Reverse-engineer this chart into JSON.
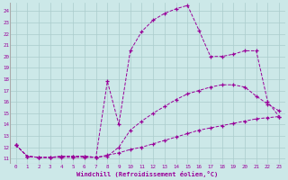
{
  "xlabel": "Windchill (Refroidissement éolien,°C)",
  "bg_color": "#cce8e8",
  "grid_color": "#aacccc",
  "line_color": "#990099",
  "xlim_min": -0.5,
  "xlim_max": 23.5,
  "ylim_min": 10.5,
  "ylim_max": 24.7,
  "xticks": [
    0,
    1,
    2,
    3,
    4,
    5,
    6,
    7,
    8,
    9,
    10,
    11,
    12,
    13,
    14,
    15,
    16,
    17,
    18,
    19,
    20,
    21,
    22,
    23
  ],
  "yticks": [
    11,
    12,
    13,
    14,
    15,
    16,
    17,
    18,
    19,
    20,
    21,
    22,
    23,
    24
  ],
  "lines": [
    {
      "x": [
        0,
        1,
        2,
        3,
        4,
        5,
        6,
        7,
        8,
        9,
        10,
        11,
        12,
        13,
        14,
        15,
        16,
        17,
        18,
        19,
        20,
        21,
        22,
        23
      ],
      "y": [
        12.2,
        11.2,
        11.1,
        11.1,
        11.1,
        11.1,
        11.1,
        11.1,
        11.3,
        11.5,
        11.8,
        12.0,
        12.3,
        12.6,
        12.9,
        13.2,
        13.5,
        13.7,
        13.9,
        14.1,
        14.3,
        14.5,
        14.6,
        14.7
      ]
    },
    {
      "x": [
        0,
        1,
        2,
        3,
        4,
        5,
        6,
        7,
        8,
        9,
        10,
        11,
        12,
        13,
        14,
        15,
        16,
        17,
        18,
        19,
        20,
        21,
        22,
        23
      ],
      "y": [
        12.2,
        11.2,
        11.1,
        11.1,
        11.2,
        11.2,
        11.2,
        11.1,
        11.2,
        12.0,
        13.5,
        14.3,
        15.0,
        15.6,
        16.2,
        16.7,
        17.0,
        17.3,
        17.5,
        17.5,
        17.3,
        16.5,
        15.8,
        15.2
      ]
    },
    {
      "x": [
        0,
        1,
        2,
        3,
        4,
        5,
        6,
        7,
        8,
        9,
        10,
        11,
        12,
        13,
        14,
        15,
        16,
        17,
        18,
        19,
        20,
        21,
        22,
        23
      ],
      "y": [
        12.2,
        11.2,
        11.1,
        11.1,
        11.2,
        11.2,
        11.2,
        11.1,
        17.8,
        14.0,
        20.5,
        22.2,
        23.2,
        23.8,
        24.2,
        24.5,
        22.3,
        20.0,
        20.0,
        20.2,
        20.5,
        20.5,
        16.0,
        14.7
      ]
    }
  ]
}
